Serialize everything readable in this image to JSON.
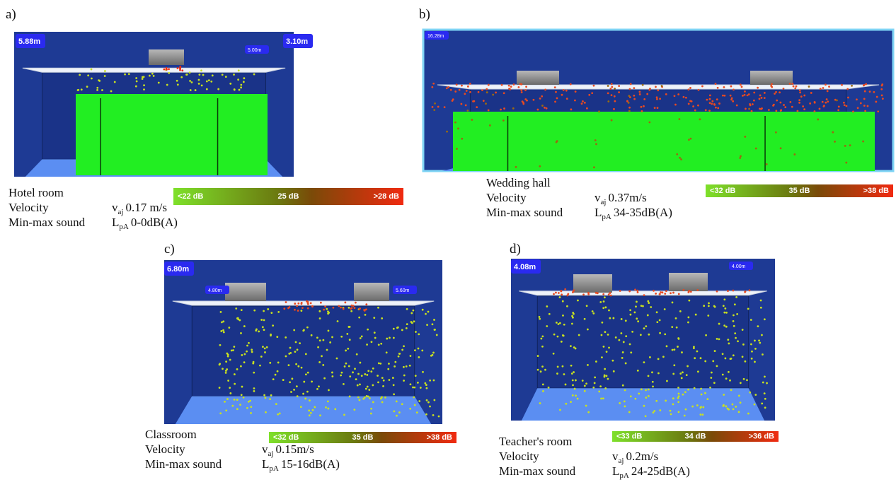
{
  "panels": [
    {
      "label": "a)",
      "dimensions": [
        "5.88m",
        "3.10m",
        "5.00m"
      ],
      "room": "Hotel room",
      "velocity_label": "Velocity",
      "velocity_symbol": "v",
      "velocity_subscript": "aj",
      "velocity_value": "0.17 m/s",
      "sound_label": "Min-max sound",
      "sound_symbol": "L",
      "sound_subscript": "pA",
      "sound_value": "0-0dB(A)",
      "scale": [
        "<22 dB",
        "25 dB",
        ">28 dB"
      ]
    },
    {
      "label": "b)",
      "dimensions": [
        "16.28m"
      ],
      "room": "Wedding hall",
      "velocity_label": "Velocity",
      "velocity_symbol": "v",
      "velocity_subscript": "aj",
      "velocity_value": "0.37m/s",
      "sound_label": "Min-max sound",
      "sound_symbol": "L",
      "sound_subscript": "pA",
      "sound_value": "34-35dB(A)",
      "scale": [
        "<32 dB",
        "35 dB",
        ">38 dB"
      ]
    },
    {
      "label": "c)",
      "dimensions": [
        "6.80m",
        "4.80m",
        "5.60m"
      ],
      "room": "Classroom",
      "velocity_label": "Velocity",
      "velocity_symbol": "v",
      "velocity_subscript": "aj",
      "velocity_value": "0.15m/s",
      "sound_label": "Min-max sound",
      "sound_symbol": "L",
      "sound_subscript": "pA",
      "sound_value": "15-16dB(A)",
      "scale": [
        "<32 dB",
        "35 dB",
        ">38 dB"
      ]
    },
    {
      "label": "d)",
      "dimensions": [
        "4.08m",
        "4.00m"
      ],
      "room": "Teacher's room",
      "velocity_label": "Velocity",
      "velocity_symbol": "v",
      "velocity_subscript": "aj",
      "velocity_value": "0.2m/s",
      "sound_label": "Min-max sound",
      "sound_symbol": "L",
      "sound_subscript": "pA",
      "sound_value": "24-25dB(A)",
      "scale": [
        "<33 dB",
        "34 dB",
        ">36 dB"
      ]
    }
  ]
}
